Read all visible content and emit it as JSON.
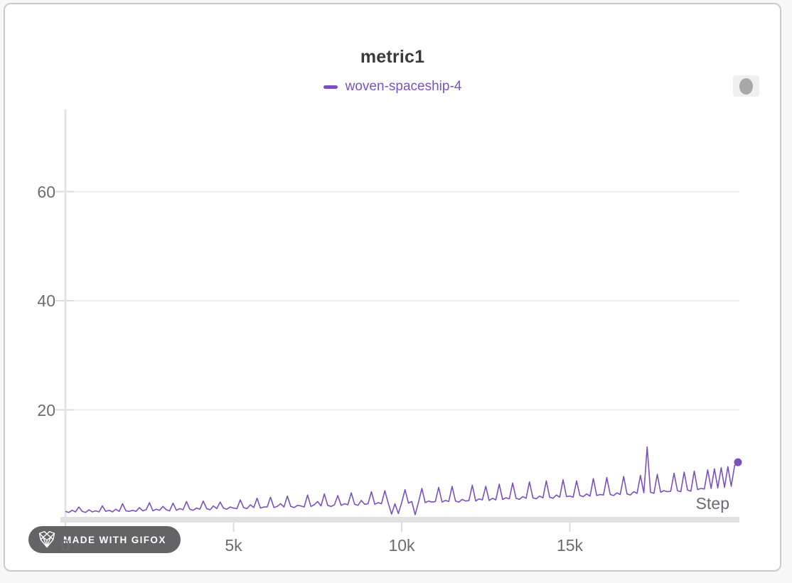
{
  "panel": {
    "type": "metric-chart-panel"
  },
  "controls": {
    "handle_icon": "oval-handle"
  },
  "watermark": {
    "label": "MADE WITH GIFOX",
    "icon": "gifox-fox-logo",
    "bg_color": "#58585a"
  },
  "colors": {
    "accent": "#7b50bf",
    "legend_text": "#7a52c2",
    "title_text": "#3a3a3e",
    "tick_text": "#6b6b73",
    "gridline": "#e9e9e9",
    "axis": "#e3e3e3",
    "baseline_bar": "#e1e1e1",
    "panel_border": "#c9c9c9"
  },
  "chart_data": {
    "type": "line",
    "title": "metric1",
    "xlabel": "Step",
    "ylabel": "",
    "xlim": [
      0,
      20000
    ],
    "ylim": [
      0,
      75
    ],
    "grid": "horizontal",
    "legend_position": "top-center",
    "x_ticks": [
      {
        "value": 0,
        "label": "0"
      },
      {
        "value": 5000,
        "label": "5k"
      },
      {
        "value": 10000,
        "label": "10k"
      },
      {
        "value": 15000,
        "label": "15k"
      }
    ],
    "y_ticks": [
      {
        "value": 20,
        "label": "20"
      },
      {
        "value": 40,
        "label": "40"
      },
      {
        "value": 60,
        "label": "60"
      }
    ],
    "series": [
      {
        "name": "woven-spaceship-4",
        "color": "#7b50bf",
        "x_start": 0,
        "x_step": 100,
        "values": [
          1.4,
          1.2,
          1.6,
          1.3,
          2.2,
          1.4,
          1.2,
          1.7,
          1.3,
          1.5,
          1.3,
          2.4,
          1.4,
          1.6,
          1.3,
          1.8,
          1.4,
          2.8,
          1.5,
          1.4,
          1.6,
          1.4,
          2.1,
          1.5,
          1.7,
          3.0,
          1.5,
          1.8,
          1.6,
          2.3,
          1.7,
          1.5,
          2.9,
          1.6,
          1.9,
          1.7,
          3.2,
          1.8,
          1.6,
          2.0,
          1.8,
          3.3,
          1.9,
          1.7,
          2.4,
          1.9,
          3.1,
          2.0,
          1.8,
          2.2,
          2.0,
          1.9,
          3.5,
          2.1,
          1.9,
          2.6,
          2.1,
          3.8,
          2.0,
          2.2,
          2.2,
          4.0,
          2.1,
          2.3,
          2.8,
          2.2,
          4.2,
          2.3,
          2.1,
          2.5,
          2.4,
          2.2,
          4.4,
          2.3,
          2.6,
          3.2,
          2.4,
          4.6,
          2.5,
          2.3,
          2.6,
          4.3,
          2.5,
          2.8,
          2.6,
          4.8,
          2.7,
          2.5,
          3.4,
          2.7,
          2.8,
          5.0,
          2.7,
          3.0,
          2.8,
          5.2,
          2.9,
          0.9,
          2.8,
          1.0,
          3.0,
          5.4,
          2.9,
          3.2,
          0.8,
          3.1,
          5.6,
          3.0,
          3.3,
          3.1,
          3.2,
          5.8,
          3.1,
          3.4,
          3.2,
          6.0,
          3.3,
          3.1,
          3.6,
          3.3,
          3.4,
          6.2,
          3.3,
          3.7,
          3.5,
          6.0,
          3.4,
          3.8,
          3.5,
          6.4,
          3.6,
          3.9,
          3.7,
          6.6,
          3.8,
          3.6,
          4.1,
          3.8,
          6.8,
          3.9,
          3.7,
          4.2,
          3.9,
          7.0,
          4.0,
          3.8,
          4.4,
          4.0,
          7.2,
          4.1,
          4.2,
          4.0,
          7.0,
          4.3,
          4.1,
          4.6,
          4.2,
          7.4,
          4.3,
          4.5,
          4.4,
          7.6,
          4.5,
          4.3,
          4.8,
          4.5,
          7.8,
          4.6,
          4.4,
          5.0,
          4.7,
          8.0,
          4.8,
          13.2,
          4.9,
          4.7,
          8.2,
          4.9,
          5.2,
          5.0,
          5.1,
          8.4,
          5.2,
          5.0,
          8.6,
          5.3,
          5.1,
          8.8,
          5.4,
          5.6,
          5.5,
          9.0,
          5.6,
          9.2,
          5.7,
          9.4,
          5.8,
          9.6,
          6.0,
          9.8,
          10.4
        ],
        "end_marker": {
          "x": 20000,
          "y": 10.4
        }
      }
    ]
  }
}
